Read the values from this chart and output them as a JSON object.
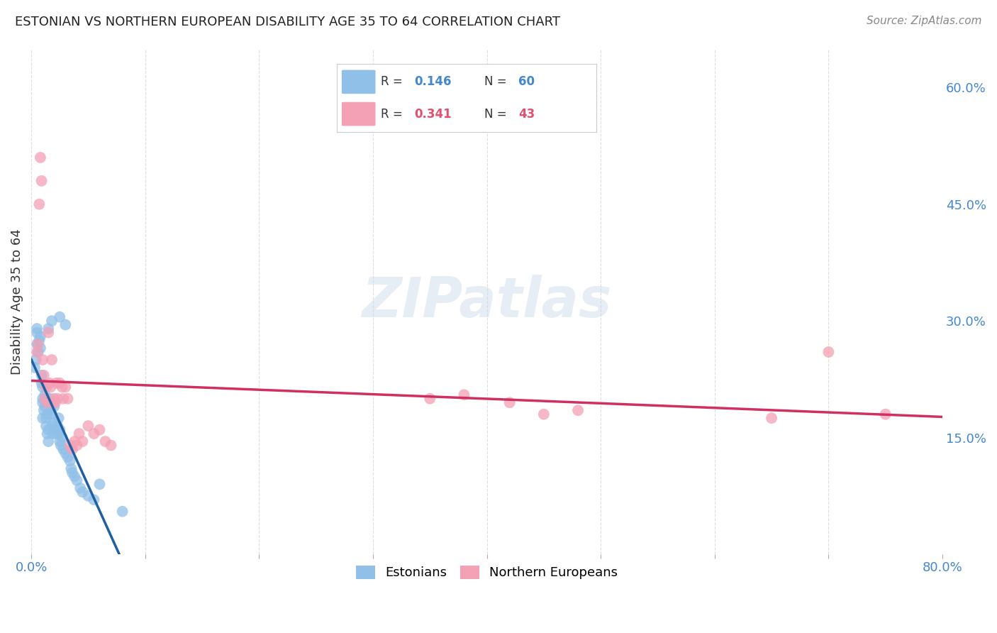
{
  "title": "ESTONIAN VS NORTHERN EUROPEAN DISABILITY AGE 35 TO 64 CORRELATION CHART",
  "source": "Source: ZipAtlas.com",
  "ylabel": "Disability Age 35 to 64",
  "xlim": [
    0.0,
    0.8
  ],
  "ylim": [
    0.0,
    0.65
  ],
  "xtick_positions": [
    0.0,
    0.1,
    0.2,
    0.3,
    0.4,
    0.5,
    0.6,
    0.7,
    0.8
  ],
  "xticklabels": [
    "0.0%",
    "",
    "",
    "",
    "",
    "",
    "",
    "",
    "80.0%"
  ],
  "ytick_right_labels": [
    "60.0%",
    "45.0%",
    "30.0%",
    "15.0%"
  ],
  "ytick_right_vals": [
    0.6,
    0.45,
    0.3,
    0.15
  ],
  "blue_scatter_color": "#90C0E8",
  "pink_scatter_color": "#F4A0B5",
  "blue_line_color": "#2060A0",
  "pink_line_color": "#D03060",
  "dashed_line_color": "#90B8D8",
  "watermark": "ZIPatlas",
  "legend_blue_r": "0.146",
  "legend_blue_n": "60",
  "legend_pink_r": "0.341",
  "legend_pink_n": "43",
  "legend_r_color": "#4488CC",
  "legend_n_color_blue": "#4488CC",
  "legend_n_color_pink": "#E05070",
  "estonians_x": [
    0.005,
    0.005,
    0.005,
    0.007,
    0.008,
    0.008,
    0.009,
    0.01,
    0.01,
    0.01,
    0.01,
    0.011,
    0.012,
    0.012,
    0.013,
    0.013,
    0.013,
    0.014,
    0.014,
    0.015,
    0.015,
    0.016,
    0.016,
    0.017,
    0.018,
    0.018,
    0.019,
    0.02,
    0.02,
    0.021,
    0.022,
    0.023,
    0.024,
    0.024,
    0.025,
    0.025,
    0.026,
    0.027,
    0.028,
    0.03,
    0.032,
    0.034,
    0.035,
    0.036,
    0.038,
    0.04,
    0.043,
    0.045,
    0.05,
    0.055,
    0.003,
    0.004,
    0.006,
    0.009,
    0.015,
    0.018,
    0.025,
    0.03,
    0.06,
    0.08
  ],
  "estonians_y": [
    0.27,
    0.29,
    0.285,
    0.275,
    0.265,
    0.28,
    0.22,
    0.215,
    0.2,
    0.195,
    0.175,
    0.185,
    0.205,
    0.19,
    0.2,
    0.175,
    0.165,
    0.18,
    0.155,
    0.16,
    0.145,
    0.2,
    0.195,
    0.185,
    0.18,
    0.165,
    0.155,
    0.19,
    0.17,
    0.16,
    0.155,
    0.165,
    0.175,
    0.155,
    0.16,
    0.145,
    0.14,
    0.15,
    0.135,
    0.13,
    0.125,
    0.12,
    0.11,
    0.105,
    0.1,
    0.095,
    0.085,
    0.08,
    0.075,
    0.07,
    0.24,
    0.25,
    0.26,
    0.23,
    0.29,
    0.3,
    0.305,
    0.295,
    0.09,
    0.055
  ],
  "northern_x": [
    0.005,
    0.006,
    0.007,
    0.008,
    0.009,
    0.01,
    0.011,
    0.012,
    0.013,
    0.014,
    0.015,
    0.016,
    0.017,
    0.018,
    0.019,
    0.02,
    0.021,
    0.022,
    0.023,
    0.025,
    0.027,
    0.028,
    0.03,
    0.032,
    0.034,
    0.036,
    0.038,
    0.04,
    0.042,
    0.045,
    0.05,
    0.055,
    0.06,
    0.065,
    0.07,
    0.35,
    0.38,
    0.42,
    0.45,
    0.48,
    0.65,
    0.7,
    0.75
  ],
  "northern_y": [
    0.26,
    0.27,
    0.45,
    0.51,
    0.48,
    0.25,
    0.23,
    0.2,
    0.215,
    0.195,
    0.285,
    0.22,
    0.215,
    0.25,
    0.195,
    0.2,
    0.195,
    0.22,
    0.2,
    0.22,
    0.215,
    0.2,
    0.215,
    0.2,
    0.14,
    0.135,
    0.145,
    0.14,
    0.155,
    0.145,
    0.165,
    0.155,
    0.16,
    0.145,
    0.14,
    0.2,
    0.205,
    0.195,
    0.18,
    0.185,
    0.175,
    0.26,
    0.18
  ]
}
